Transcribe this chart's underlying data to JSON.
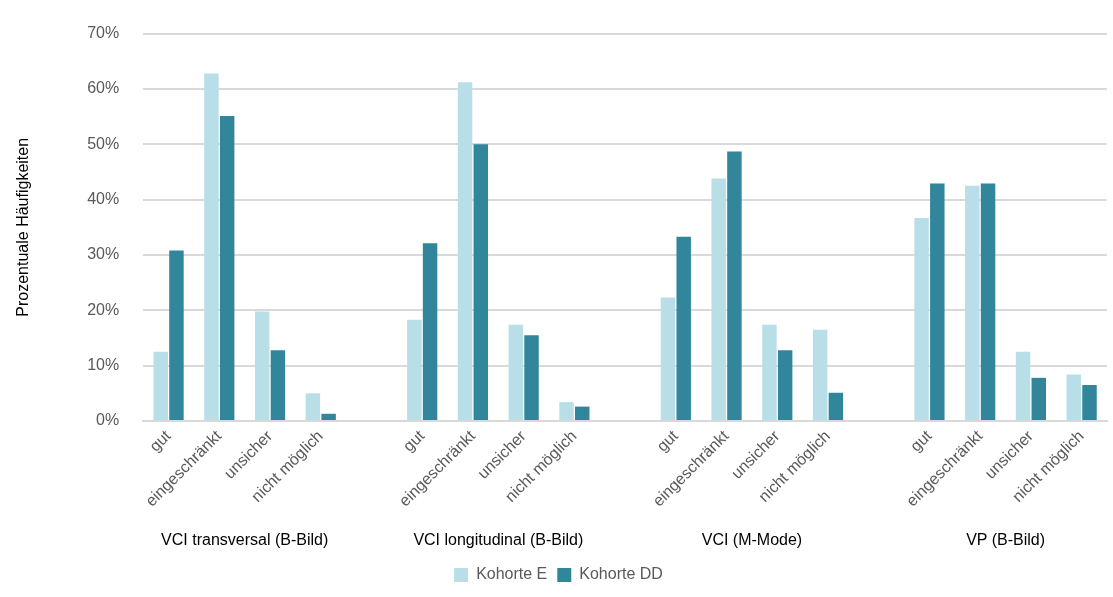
{
  "chart_data": {
    "type": "bar",
    "ylabel": "Prozentuale Häufigkeiten",
    "categories": [
      "gut",
      "eingeschränkt",
      "unsicher",
      "nicht möglich",
      null,
      "gut",
      "eingeschränkt",
      "unsicher",
      "nicht möglich",
      null,
      "gut",
      "eingeschränkt",
      "unsicher",
      "nicht möglich",
      null,
      "gut",
      "eingeschränkt",
      "unsicher",
      "nicht möglich"
    ],
    "series": [
      {
        "name": "Kohorte E",
        "color": "#b8dee8",
        "values": [
          12.5,
          62.8,
          19.8,
          5.0,
          null,
          18.3,
          61.2,
          17.4,
          3.4,
          null,
          22.3,
          43.8,
          17.4,
          16.5,
          null,
          36.7,
          42.5,
          12.5,
          8.4
        ]
      },
      {
        "name": "Kohorte DD",
        "color": "#31869b",
        "values": [
          30.8,
          55.1,
          12.8,
          1.3,
          null,
          32.1,
          50.0,
          15.5,
          2.6,
          null,
          33.3,
          48.7,
          12.8,
          5.1,
          null,
          42.9,
          42.9,
          7.8,
          6.5
        ]
      }
    ],
    "annotations": [
      "VCI transversal (B-Bild)",
      "VCI longitudinal (B-Bild)",
      "VCI (M-Mode)",
      "VP (B-Bild)"
    ],
    "ylim": [
      0,
      70
    ],
    "yticks": [
      {
        "value": 0,
        "label": "0%"
      },
      {
        "value": 10,
        "label": "10%"
      },
      {
        "value": 20,
        "label": "20%"
      },
      {
        "value": 30,
        "label": "30%"
      },
      {
        "value": 40,
        "label": "40%"
      },
      {
        "value": 50,
        "label": "50%"
      },
      {
        "value": 60,
        "label": "60%"
      },
      {
        "value": 70,
        "label": "70%"
      }
    ],
    "grid": "y",
    "legend": "bottom"
  }
}
